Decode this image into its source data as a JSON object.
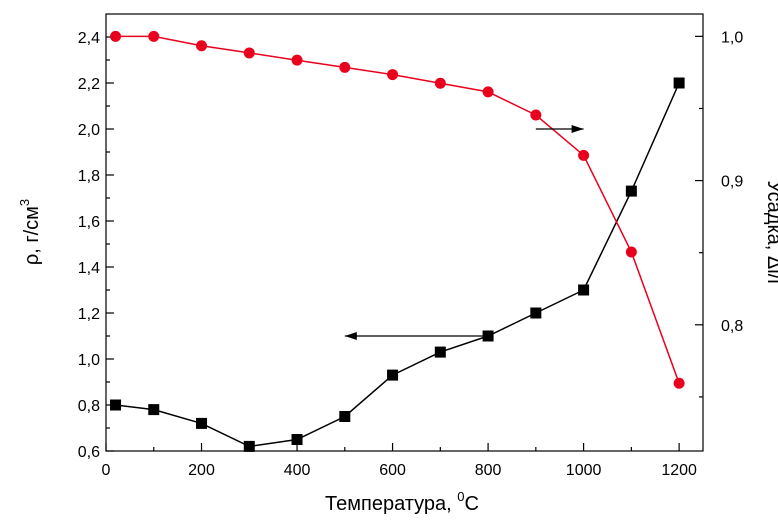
{
  "chart_data": {
    "type": "line",
    "x": [
      20,
      100,
      200,
      300,
      400,
      500,
      600,
      700,
      800,
      900,
      1000,
      1100,
      1200
    ],
    "xlim": [
      0,
      1250
    ],
    "xticks": [
      0,
      200,
      400,
      600,
      800,
      1000,
      1200
    ],
    "xtick_labels": [
      "0",
      "200",
      "400",
      "600",
      "800",
      "1000",
      "1200"
    ],
    "xlabel": "Температура, ",
    "xlabel_sup": "0",
    "xlabel_unit": "C",
    "left_axis": {
      "label": "ρ, г/см",
      "label_sup": "3",
      "ylim": [
        0.6,
        2.5
      ],
      "ticks": [
        0.6,
        0.8,
        1.0,
        1.2,
        1.4,
        1.6,
        1.8,
        2.0,
        2.2,
        2.4
      ],
      "tick_labels": [
        "0,6",
        "0,8",
        "1,0",
        "1,2",
        "1,4",
        "1,6",
        "1,8",
        "2,0",
        "2,2",
        "2,4"
      ]
    },
    "right_axis": {
      "label": "Усадка, Δl/l",
      "ylim": [
        0.7125,
        1.0155
      ],
      "ticks": [
        0.8,
        0.9,
        1.0
      ],
      "tick_labels": [
        "0,8",
        "0,9",
        "1,0"
      ]
    },
    "series": [
      {
        "axis": "left",
        "marker": "square",
        "color": "#000000",
        "values": [
          0.8,
          0.78,
          0.72,
          0.62,
          0.65,
          0.75,
          0.93,
          1.03,
          1.1,
          1.2,
          1.3,
          1.73,
          2.2
        ]
      },
      {
        "axis": "right",
        "marker": "circle",
        "color": "#e8001c",
        "values": [
          1.0,
          1.0,
          0.9935,
          0.9885,
          0.9835,
          0.9785,
          0.9735,
          0.9675,
          0.9615,
          0.9455,
          0.9175,
          0.8505,
          0.7595
        ]
      }
    ],
    "annotations": [
      {
        "type": "arrow",
        "direction": "right",
        "points_to": "right_axis",
        "from": [
          900,
          2.0
        ],
        "to": [
          1000,
          2.0
        ]
      },
      {
        "type": "arrow",
        "direction": "left",
        "points_to": "left_axis",
        "from": [
          800,
          1.1
        ],
        "to": [
          500,
          1.1
        ]
      }
    ],
    "grid": false
  }
}
